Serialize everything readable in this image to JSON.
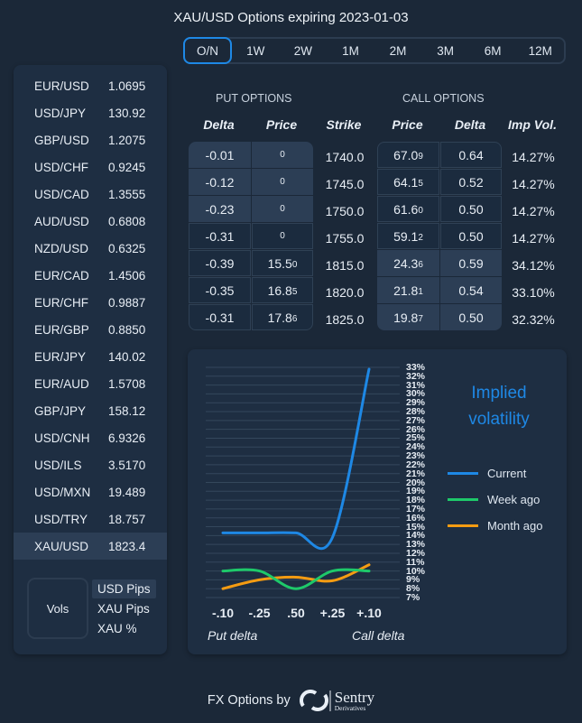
{
  "header": {
    "title": "XAU/USD Options expiring 2023-01-03",
    "tabs": [
      "O/N",
      "1W",
      "2W",
      "1M",
      "2M",
      "3M",
      "6M",
      "12M"
    ],
    "active_tab": "O/N"
  },
  "pairs": [
    {
      "name": "EUR/USD",
      "value": "1.0695"
    },
    {
      "name": "USD/JPY",
      "value": "130.92"
    },
    {
      "name": "GBP/USD",
      "value": "1.2075"
    },
    {
      "name": "USD/CHF",
      "value": "0.9245"
    },
    {
      "name": "USD/CAD",
      "value": "1.3555"
    },
    {
      "name": "AUD/USD",
      "value": "0.6808"
    },
    {
      "name": "NZD/USD",
      "value": "0.6325"
    },
    {
      "name": "EUR/CAD",
      "value": "1.4506"
    },
    {
      "name": "EUR/CHF",
      "value": "0.9887"
    },
    {
      "name": "EUR/GBP",
      "value": "0.8850"
    },
    {
      "name": "EUR/JPY",
      "value": "140.02"
    },
    {
      "name": "EUR/AUD",
      "value": "1.5708"
    },
    {
      "name": "GBP/JPY",
      "value": "158.12"
    },
    {
      "name": "USD/CNH",
      "value": "6.9326"
    },
    {
      "name": "USD/ILS",
      "value": "3.5170"
    },
    {
      "name": "USD/MXN",
      "value": "19.489"
    },
    {
      "name": "USD/TRY",
      "value": "18.757"
    },
    {
      "name": "XAU/USD",
      "value": "1823.4"
    }
  ],
  "selected_pair": "XAU/USD",
  "units": {
    "vols": "Vols",
    "options": [
      "USD Pips",
      "XAU Pips",
      "XAU %"
    ],
    "selected": "USD Pips"
  },
  "table": {
    "put_label": "PUT OPTIONS",
    "call_label": "CALL OPTIONS",
    "headers": [
      "Delta",
      "Price",
      "Strike",
      "Price",
      "Delta",
      "Imp Vol."
    ],
    "rows": [
      {
        "put_delta": "-0.01",
        "put_price": "0",
        "put_pip": "",
        "strike": "1740.0",
        "call_price": "67.0",
        "call_pip": "9",
        "call_delta": "0.64",
        "iv": "14.27%"
      },
      {
        "put_delta": "-0.12",
        "put_price": "0",
        "put_pip": "",
        "strike": "1745.0",
        "call_price": "64.1",
        "call_pip": "5",
        "call_delta": "0.52",
        "iv": "14.27%"
      },
      {
        "put_delta": "-0.23",
        "put_price": "0",
        "put_pip": "",
        "strike": "1750.0",
        "call_price": "61.6",
        "call_pip": "0",
        "call_delta": "0.50",
        "iv": "14.27%"
      },
      {
        "put_delta": "-0.31",
        "put_price": "0",
        "put_pip": "",
        "strike": "1755.0",
        "call_price": "59.1",
        "call_pip": "2",
        "call_delta": "0.50",
        "iv": "14.27%"
      },
      {
        "put_delta": "-0.39",
        "put_price": "15.5",
        "put_pip": "0",
        "strike": "1815.0",
        "call_price": "24.3",
        "call_pip": "6",
        "call_delta": "0.59",
        "iv": "34.12%"
      },
      {
        "put_delta": "-0.35",
        "put_price": "16.8",
        "put_pip": "5",
        "strike": "1820.0",
        "call_price": "21.8",
        "call_pip": "1",
        "call_delta": "0.54",
        "iv": "33.10%"
      },
      {
        "put_delta": "-0.31",
        "put_price": "17.8",
        "put_pip": "6",
        "strike": "1825.0",
        "call_price": "19.8",
        "call_pip": "7",
        "call_delta": "0.50",
        "iv": "32.32%"
      }
    ]
  },
  "chart_data": {
    "type": "line",
    "title": "Implied volatility",
    "categories": [
      "-.10",
      "-.25",
      ".50",
      "+.25",
      "+.10"
    ],
    "xlabel_left": "Put delta",
    "xlabel_right": "Call delta",
    "ylim": [
      7,
      33
    ],
    "y_ticks": [
      "7%",
      "8%",
      "9%",
      "10%",
      "11%",
      "12%",
      "13%",
      "14%",
      "15%",
      "16%",
      "17%",
      "18%",
      "19%",
      "20%",
      "21%",
      "22%",
      "23%",
      "24%",
      "25%",
      "26%",
      "27%",
      "28%",
      "29%",
      "30%",
      "31%",
      "32%",
      "33%"
    ],
    "grid": true,
    "legend_position": "right",
    "series": [
      {
        "name": "Current",
        "color": "#1e88e5",
        "values": [
          14.3,
          14.3,
          14.3,
          13.8,
          32.8
        ]
      },
      {
        "name": "Week ago",
        "color": "#1ec96a",
        "values": [
          10.0,
          10.0,
          8.0,
          10.0,
          10.0
        ]
      },
      {
        "name": "Month ago",
        "color": "#f59c12",
        "values": [
          8.0,
          9.0,
          9.3,
          8.9,
          10.7
        ]
      }
    ]
  },
  "footer": {
    "text": "FX Options by",
    "logo_text": "Sentry",
    "logo_sub": "Derivatives"
  }
}
